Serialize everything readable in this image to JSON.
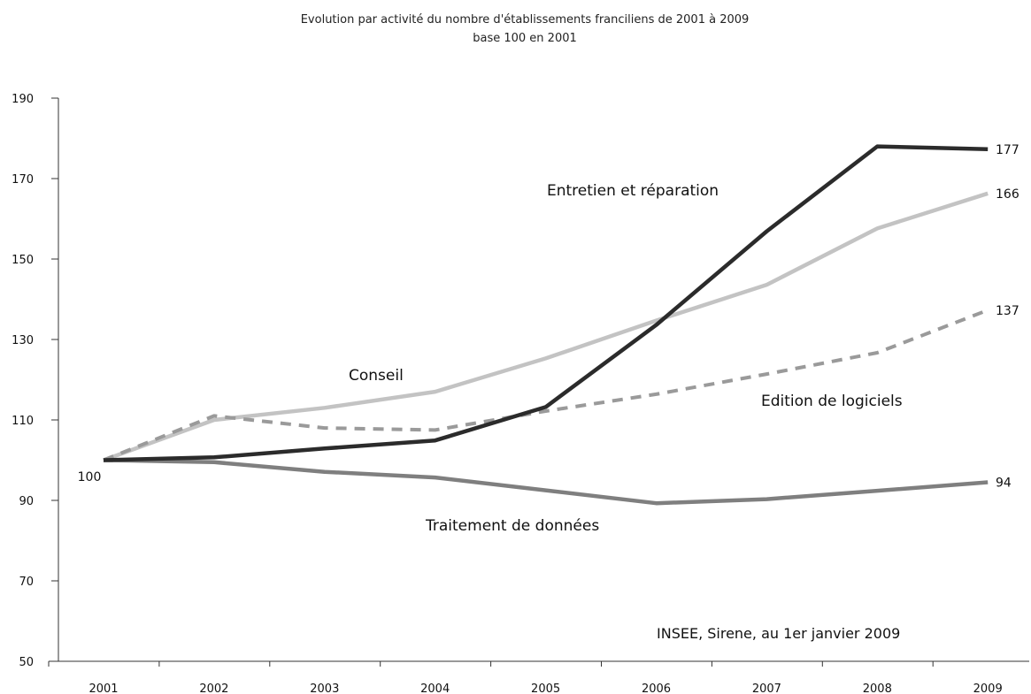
{
  "chart_data": {
    "type": "line",
    "title": "Evolution par activité du nombre d'établissements franciliens de 2001 à 2009",
    "subtitle": "base 100 en 2001",
    "categories": [
      "2001",
      "2002",
      "2003",
      "2004",
      "2005",
      "2006",
      "2007",
      "2008",
      "2009"
    ],
    "ylim": [
      50,
      190
    ],
    "yticks": [
      "50",
      "70",
      "90",
      "110",
      "130",
      "150",
      "170",
      "190"
    ],
    "grid": false,
    "series": [
      {
        "name": "Entretien et réparation",
        "color": "#2b2b2b",
        "style": "solid",
        "values": [
          100,
          100.7,
          102.9,
          104.9,
          113.2,
          133.6,
          156.9,
          178,
          177.3
        ],
        "end_label": "177"
      },
      {
        "name": "Conseil",
        "color": "#c3c3c3",
        "style": "solid",
        "values": [
          100,
          110,
          113,
          117,
          125.3,
          134.7,
          143.6,
          157.6,
          166.3
        ],
        "end_label": "166"
      },
      {
        "name": "Edition de logiciels",
        "color": "#9a9a9a",
        "style": "dashed",
        "values": [
          100,
          111,
          108,
          107.5,
          112.2,
          116.4,
          121.4,
          126.7,
          137.3
        ],
        "end_label": "137"
      },
      {
        "name": "Traitement de données",
        "color": "#7f7f7f",
        "style": "solid",
        "values": [
          100,
          99.5,
          97.1,
          95.7,
          92.5,
          89.3,
          90.3,
          92.4,
          94.5
        ],
        "end_label": "94"
      }
    ],
    "start_label": "100",
    "annotations": [
      "INSEE, Sirene, au 1er janvier 2009"
    ]
  }
}
